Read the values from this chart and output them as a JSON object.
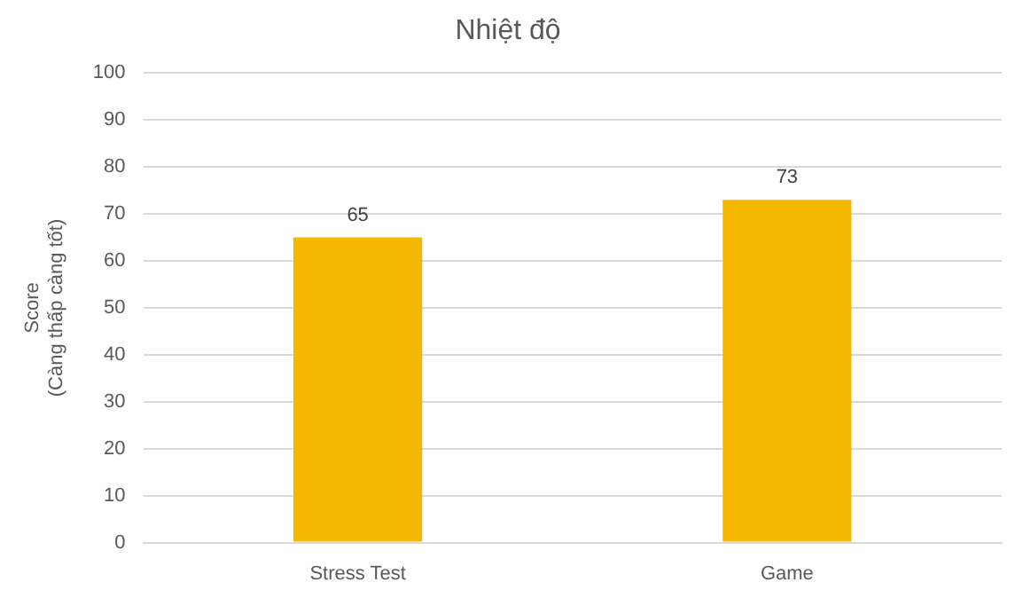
{
  "chart_data": {
    "type": "bar",
    "title": "Nhiệt độ",
    "ylabel": "Score\n(Càng thấp càng tốt)",
    "categories": [
      "Stress Test",
      "Game"
    ],
    "values": [
      65,
      73
    ],
    "color": "#f5b800",
    "ylim": [
      0,
      100
    ],
    "yticks": [
      0,
      10,
      20,
      30,
      40,
      50,
      60,
      70,
      80,
      90,
      100
    ],
    "grid": "y",
    "data_labels": true
  }
}
